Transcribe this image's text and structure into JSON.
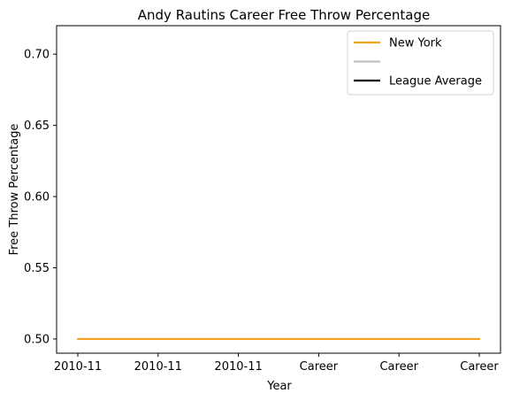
{
  "chart_data": {
    "type": "line",
    "title": "Andy Rautins Career Free Throw Percentage",
    "xlabel": "Year",
    "ylabel": "Free Throw Percentage",
    "categories": [
      "2010-11",
      "2010-11",
      "2010-11",
      "Career",
      "Career",
      "Career"
    ],
    "ylim": [
      0.49,
      0.72
    ],
    "yticks": [
      "0.50",
      "0.55",
      "0.60",
      "0.65",
      "0.70"
    ],
    "grid": false,
    "legend_position": "top-right",
    "series": [
      {
        "name": "New York",
        "color": "#f5a122",
        "values": [
          0.5,
          0.5,
          0.5,
          0.5,
          0.5,
          0.5
        ]
      }
    ],
    "legend": [
      {
        "label": "New York",
        "color": "#f5a122"
      },
      {
        "label": "",
        "color": "#bfbfbf"
      },
      {
        "label": "League Average",
        "color": "#000000"
      }
    ]
  }
}
